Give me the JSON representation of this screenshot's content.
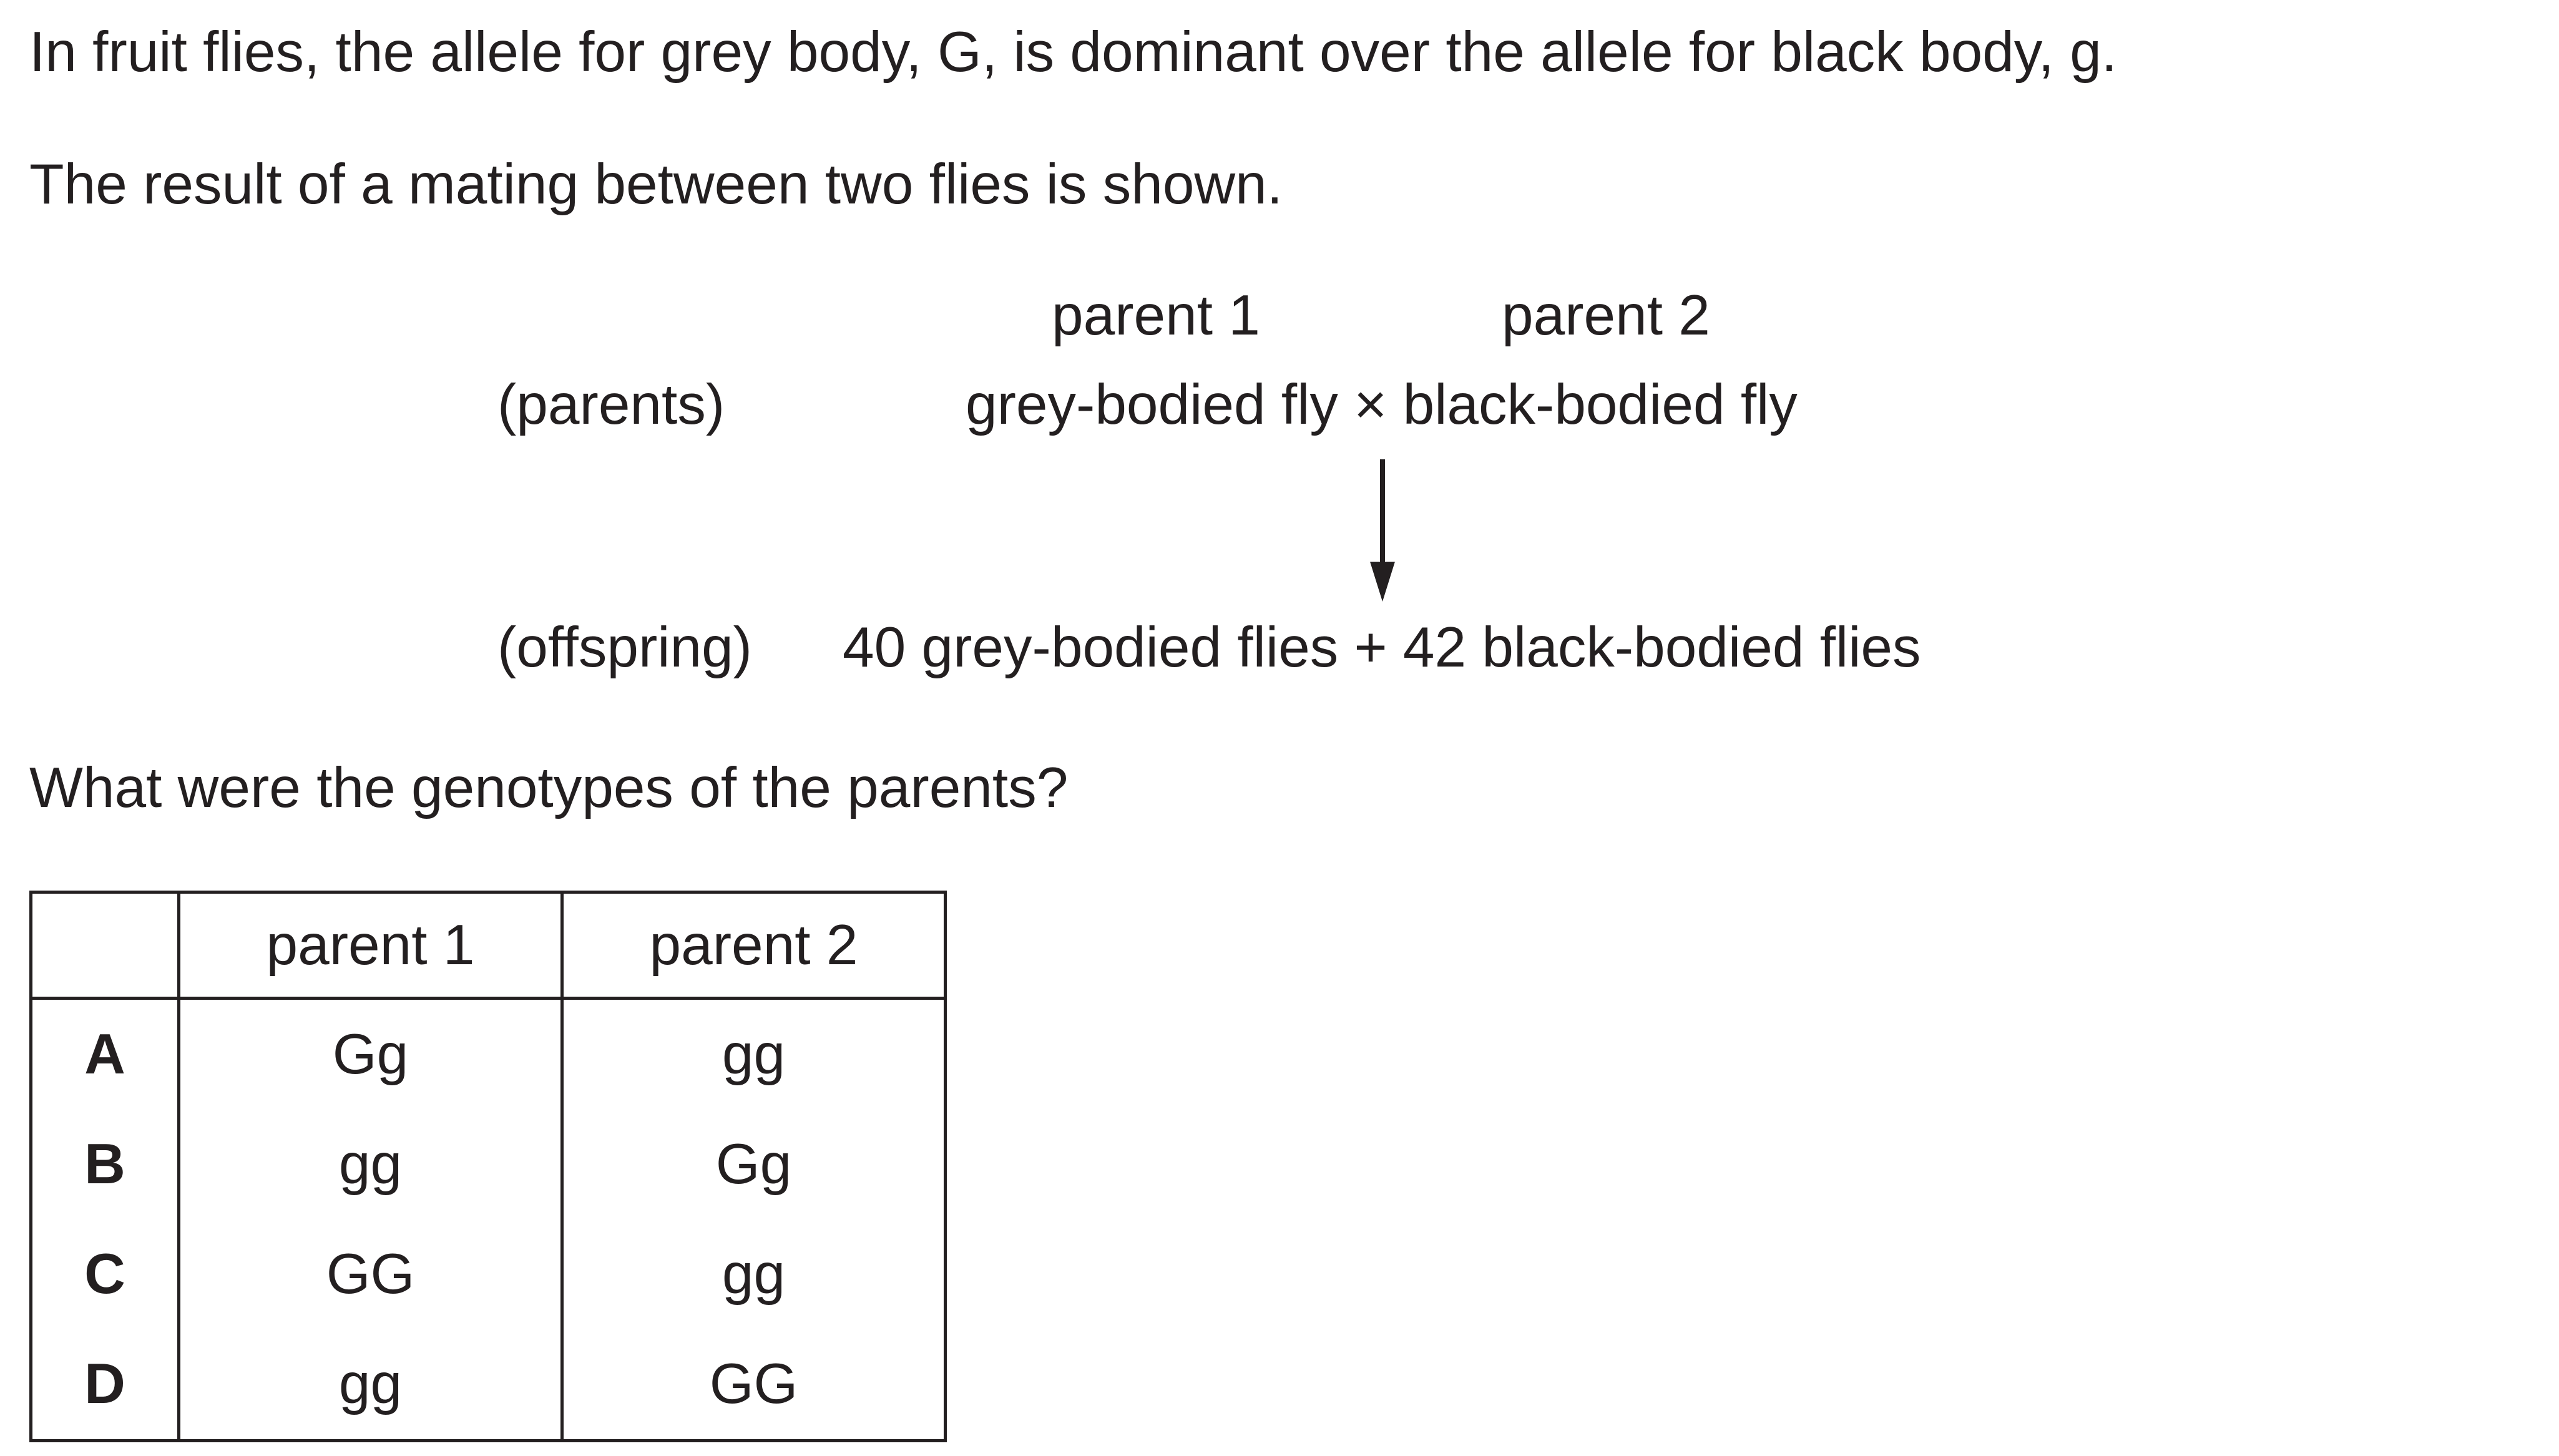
{
  "question": {
    "intro": "In fruit flies, the allele for grey body, G, is dominant over the allele for black body, g.",
    "result_statement": "The result of a mating between two flies is shown.",
    "prompt": "What were the genotypes of the parents?"
  },
  "cross_diagram": {
    "parent1_heading": "parent 1",
    "parent2_heading": "parent 2",
    "parents_label": "(parents)",
    "parents_cross": "grey-bodied fly × black-bodied fly",
    "offspring_label": "(offspring)",
    "offspring_result": "40 grey-bodied flies + 42 black-bodied flies"
  },
  "answer_table": {
    "headers": [
      "",
      "parent 1",
      "parent 2"
    ],
    "rows": [
      {
        "letter": "A",
        "parent1": "Gg",
        "parent2": "gg"
      },
      {
        "letter": "B",
        "parent1": "gg",
        "parent2": "Gg"
      },
      {
        "letter": "C",
        "parent1": "GG",
        "parent2": "gg"
      },
      {
        "letter": "D",
        "parent1": "gg",
        "parent2": "GG"
      }
    ]
  }
}
